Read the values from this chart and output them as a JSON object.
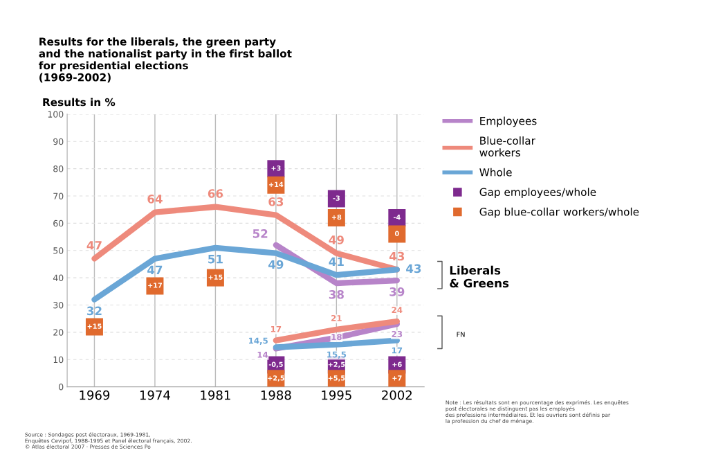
{
  "chart_data": {
    "type": "line",
    "title": "Results for the liberals, the green party\nand the nationalist party in the first ballot\nfor presidential elections\n(1969-2002)",
    "ylabel": "Results in %",
    "categories": [
      "1969",
      "1974",
      "1981",
      "1988",
      "1995",
      "2002"
    ],
    "ylim": [
      0,
      100
    ],
    "yticks": [
      0,
      10,
      20,
      30,
      40,
      50,
      60,
      70,
      80,
      90,
      100
    ],
    "grid": true,
    "legend": "top right",
    "line_style": "solid",
    "marker": "none",
    "series": [
      {
        "name": "Employees",
        "color": "#b784c9",
        "values": [
          null,
          null,
          null,
          52,
          38,
          39
        ],
        "value_labels": [
          null,
          null,
          null,
          "52",
          "38",
          "39"
        ]
      },
      {
        "name": "Blue-collar\nworkers",
        "color": "#ee8a7c",
        "values": [
          47,
          64,
          66,
          63,
          49,
          43
        ],
        "value_labels": [
          "47",
          "64",
          "66",
          "63",
          "49",
          "43"
        ]
      },
      {
        "name": "Whole",
        "color": "#6aa6d6",
        "values": [
          32,
          47,
          51,
          49,
          41,
          43
        ],
        "value_labels": [
          "32",
          "47",
          "51",
          "49",
          "41",
          "43"
        ]
      },
      {
        "color": "#b784c9",
        "values": [
          null,
          null,
          null,
          14,
          18,
          23
        ],
        "value_labels": [
          null,
          null,
          null,
          "14",
          "18",
          "23"
        ]
      },
      {
        "color": "#ee8a7c",
        "values": [
          null,
          null,
          null,
          17,
          21,
          24
        ],
        "value_labels": [
          null,
          null,
          null,
          "17",
          "21",
          "24"
        ]
      },
      {
        "color": "#6aa6d6",
        "values": [
          null,
          null,
          null,
          14.5,
          15.5,
          17
        ],
        "value_labels": [
          null,
          null,
          null,
          "14,5",
          "15,5",
          "17"
        ]
      },
      {
        "type": "scatter",
        "name": "Gap employees/whole",
        "color": "#7e2a8e",
        "marker": "square",
        "values": [
          null,
          null,
          null,
          80,
          69,
          62
        ]
      },
      {
        "type": "scatter",
        "name": "Gap blue-collar workers/whole",
        "color": "#e06a2e",
        "marker": "square",
        "values": [
          22,
          37,
          40,
          74,
          62,
          56
        ]
      },
      {
        "type": "scatter",
        "color": "#7e2a8e",
        "marker": "square",
        "values": [
          null,
          null,
          null,
          8,
          8,
          8
        ]
      },
      {
        "type": "scatter",
        "color": "#e06a2e",
        "marker": "square",
        "values": [
          null,
          null,
          null,
          3,
          3,
          3
        ]
      }
    ],
    "annotations": [
      {
        "text": "+3",
        "x": "1988",
        "y": 80
      },
      {
        "text": "-3",
        "x": "1995",
        "y": 69
      },
      {
        "text": "-4",
        "x": "2002",
        "y": 62
      },
      {
        "text": "+15",
        "x": "1969",
        "y": 22
      },
      {
        "text": "+17",
        "x": "1974",
        "y": 37
      },
      {
        "text": "+15",
        "x": "1981",
        "y": 40
      },
      {
        "text": "+14",
        "x": "1988",
        "y": 74
      },
      {
        "text": "+8",
        "x": "1995",
        "y": 62
      },
      {
        "text": "0",
        "x": "2002",
        "y": 56
      },
      {
        "text": "-0,5",
        "x": "1988",
        "y": 8
      },
      {
        "text": "+2,5",
        "x": "1995",
        "y": 8
      },
      {
        "text": "+6",
        "x": "2002",
        "y": 8
      },
      {
        "text": "+2,5",
        "x": "1988",
        "y": 3
      },
      {
        "text": "+5,5",
        "x": "1995",
        "y": 3
      },
      {
        "text": "+7",
        "x": "2002",
        "y": 3
      },
      "Liberals\n& Greens",
      "FN",
      "Source : Sondages post électoraux, 1969-1981,\nEnquêtes Cevipof, 1988-1995 et Panel électoral français, 2002.\n© Atlas électoral 2007 · Presses de Sciences Po",
      "Note : Les résultats sont en pourcentage des exprimés. Les enquêtes\npost électorales ne distinguent pas les employés\ndes professions intermédiaires. Et les ouvriers sont définis par\nla profession du chef de ménage."
    ]
  }
}
